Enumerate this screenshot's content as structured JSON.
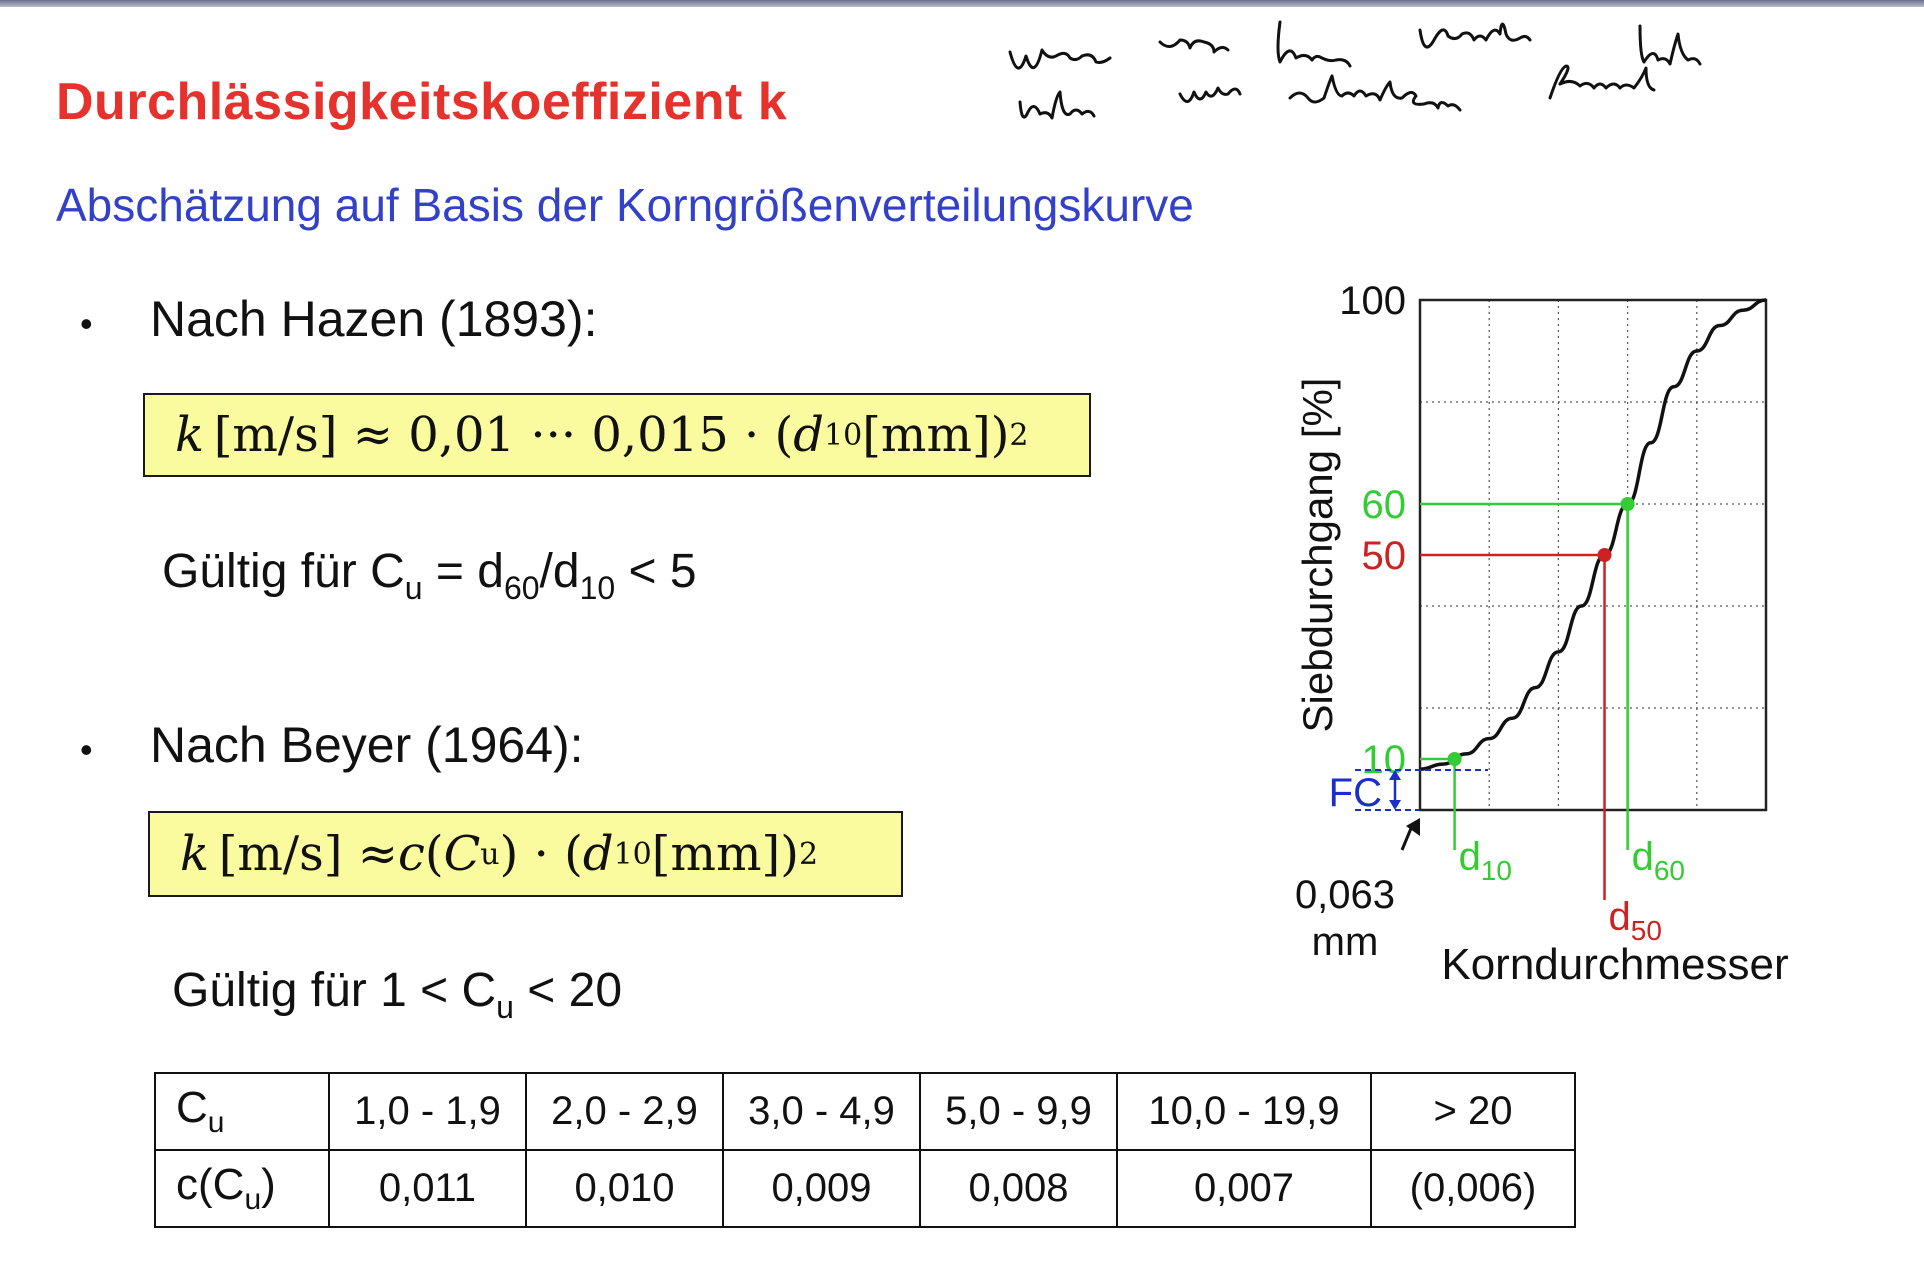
{
  "slide": {
    "title": "Durchlässigkeitskoeffizient k",
    "subtitle": "Abschätzung auf Basis der Korngrößenverteilungskurve",
    "handwritten_note": {
      "line1": "Wenn man keine Versuche hat,",
      "line2": "haben wir abschätzungs Formel"
    }
  },
  "hazen": {
    "bullet": "•",
    "heading": "Nach Hazen (1893):",
    "formula": {
      "k": "k",
      "units": "[m/s] ≈ 0,01 ··· 0,015 · (",
      "d": "d",
      "d_sub": "10",
      "mm": " [mm])",
      "exp": "2"
    },
    "validity": {
      "prefix": "Gültig für C",
      "cu_sub": "u",
      "eq": " = d",
      "d60_sub": "60",
      "slash": "/d",
      "d10_sub": "10",
      "suffix": " < 5"
    }
  },
  "beyer": {
    "bullet": "•",
    "heading": "Nach Beyer (1964):",
    "formula": {
      "k": "k",
      "units": "[m/s] ≈ ",
      "c": "c",
      "open": "(",
      "cu": "C",
      "cu_sub": "u",
      "close": ") · (",
      "d": "d",
      "d_sub": "10",
      "mm": " [mm])",
      "exp": "2"
    },
    "validity": {
      "prefix": "Gültig für 1 < C",
      "cu_sub": "u",
      "suffix": " < 20"
    }
  },
  "table": {
    "row1_head": "C",
    "row1_head_sub": "u",
    "row2_head_pre": "c(C",
    "row2_head_sub": "u",
    "row2_head_post": ")",
    "ranges": [
      "1,0 - 1,9",
      "2,0 - 2,9",
      "3,0 - 4,9",
      "5,0 - 9,9",
      "10,0 - 19,9",
      "> 20"
    ],
    "values": [
      "0,011",
      "0,010",
      "0,009",
      "0,008",
      "0,007",
      "(0,006)"
    ]
  },
  "chart_data": {
    "type": "line",
    "title": "",
    "xlabel": "Korndurchmesser",
    "ylabel": "Siebdurchgang [%]",
    "ylim": [
      0,
      100
    ],
    "grid": true,
    "y_ticks": [
      {
        "label": "100",
        "value": 100,
        "color": "#111111"
      },
      {
        "label": "60",
        "value": 60,
        "color": "#33cc33"
      },
      {
        "label": "50",
        "value": 50,
        "color": "#cc2222"
      },
      {
        "label": "10",
        "value": 10,
        "color": "#33cc33"
      }
    ],
    "x_markers": [
      {
        "name": "d",
        "sub": "10",
        "color": "#33cc33"
      },
      {
        "name": "d",
        "sub": "50",
        "color": "#cc2222"
      },
      {
        "name": "d",
        "sub": "60",
        "color": "#33cc33"
      }
    ],
    "fc_label": "FC",
    "fc_color": "#1a2ec8",
    "origin_label": "0,063",
    "origin_unit": "mm",
    "curve_y_percent": [
      8,
      9,
      11,
      14,
      18,
      24,
      31,
      40,
      50,
      60,
      72,
      83,
      90,
      95,
      98,
      100
    ]
  }
}
